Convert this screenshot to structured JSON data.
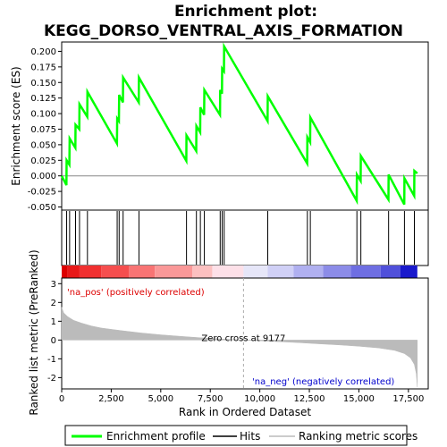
{
  "chart_data": {
    "type": "line",
    "title_line1": "Enrichment plot:",
    "title_line2": "KEGG_DORSO_VENTRAL_AXIS_FORMATION",
    "es_panel": {
      "ylabel": "Enrichment score (ES)",
      "ylim": [
        -0.055,
        0.215
      ],
      "yticks": [
        "0.200",
        "0.175",
        "0.150",
        "0.125",
        "0.100",
        "0.075",
        "0.050",
        "0.025",
        "0.000",
        "-0.025",
        "-0.050"
      ],
      "ytick_values": [
        0.2,
        0.175,
        0.15,
        0.125,
        0.1,
        0.075,
        0.05,
        0.025,
        0.0,
        -0.025,
        -0.05
      ],
      "series_color": "#00ff00",
      "hits": [
        250,
        400,
        700,
        900,
        1300,
        2800,
        2900,
        3100,
        3900,
        6300,
        6800,
        7000,
        7200,
        8000,
        8100,
        8200,
        10400,
        12400,
        12550,
        14900,
        15100,
        16500,
        17300,
        17800
      ],
      "points": [
        [
          0,
          0.0
        ],
        [
          240,
          -0.015
        ],
        [
          250,
          0.025
        ],
        [
          390,
          0.018
        ],
        [
          400,
          0.06
        ],
        [
          690,
          0.045
        ],
        [
          700,
          0.082
        ],
        [
          890,
          0.075
        ],
        [
          900,
          0.115
        ],
        [
          1290,
          0.095
        ],
        [
          1300,
          0.135
        ],
        [
          2790,
          0.052
        ],
        [
          2800,
          0.092
        ],
        [
          2890,
          0.088
        ],
        [
          2900,
          0.13
        ],
        [
          3090,
          0.118
        ],
        [
          3100,
          0.158
        ],
        [
          3890,
          0.118
        ],
        [
          3900,
          0.158
        ],
        [
          6290,
          0.024
        ],
        [
          6300,
          0.065
        ],
        [
          6790,
          0.04
        ],
        [
          6800,
          0.08
        ],
        [
          6990,
          0.07
        ],
        [
          7000,
          0.11
        ],
        [
          7190,
          0.098
        ],
        [
          7200,
          0.138
        ],
        [
          7990,
          0.098
        ],
        [
          8000,
          0.138
        ],
        [
          8090,
          0.132
        ],
        [
          8100,
          0.172
        ],
        [
          8190,
          0.168
        ],
        [
          8200,
          0.208
        ],
        [
          10390,
          0.088
        ],
        [
          10400,
          0.128
        ],
        [
          12390,
          0.02
        ],
        [
          12400,
          0.062
        ],
        [
          12540,
          0.054
        ],
        [
          12550,
          0.094
        ],
        [
          14890,
          -0.04
        ],
        [
          14900,
          0.002
        ],
        [
          15090,
          -0.008
        ],
        [
          15100,
          0.032
        ],
        [
          16490,
          -0.038
        ],
        [
          16500,
          0.002
        ],
        [
          17290,
          -0.046
        ],
        [
          17300,
          -0.004
        ],
        [
          17790,
          -0.032
        ],
        [
          17800,
          0.008
        ],
        [
          17950,
          0.004
        ]
      ]
    },
    "ranked_panel": {
      "ylabel": "Ranked list metric (PreRanked)",
      "ylim": [
        -2.6,
        3.3
      ],
      "yticks": [
        "3",
        "2",
        "1",
        "0",
        "-1",
        "-2"
      ],
      "ytick_values": [
        3,
        2,
        1,
        0,
        -1,
        -2
      ],
      "zero_cross_label": "Zero cross at 9177",
      "zero_cross": 9177,
      "pos_label": "'na_pos' (positively correlated)",
      "neg_label": "'na_neg' (negatively correlated)",
      "metric_points": [
        [
          0,
          1.75
        ],
        [
          100,
          1.45
        ],
        [
          300,
          1.25
        ],
        [
          600,
          1.05
        ],
        [
          1000,
          0.9
        ],
        [
          1500,
          0.75
        ],
        [
          2000,
          0.64
        ],
        [
          3000,
          0.5
        ],
        [
          4000,
          0.38
        ],
        [
          5000,
          0.28
        ],
        [
          6000,
          0.2
        ],
        [
          7000,
          0.12
        ],
        [
          8000,
          0.06
        ],
        [
          9177,
          0.0
        ],
        [
          10000,
          -0.04
        ],
        [
          11000,
          -0.09
        ],
        [
          12000,
          -0.14
        ],
        [
          13000,
          -0.2
        ],
        [
          14000,
          -0.26
        ],
        [
          15000,
          -0.33
        ],
        [
          16000,
          -0.42
        ],
        [
          16800,
          -0.55
        ],
        [
          17300,
          -0.72
        ],
        [
          17600,
          -0.95
        ],
        [
          17800,
          -1.3
        ],
        [
          17900,
          -1.8
        ],
        [
          17950,
          -2.5
        ]
      ]
    },
    "xaxis": {
      "xlabel": "Rank in Ordered Dataset",
      "xlim": [
        0,
        18500
      ],
      "xticks": [
        "0",
        "2,500",
        "5,000",
        "7,500",
        "10,000",
        "12,500",
        "15,000",
        "17,500"
      ],
      "xtick_values": [
        0,
        2500,
        5000,
        7500,
        10000,
        12500,
        15000,
        17500
      ],
      "n_genes": 17950
    },
    "colorbar": {
      "segments": [
        {
          "start": 0,
          "end": 300,
          "color": "#dd0000"
        },
        {
          "start": 300,
          "end": 900,
          "color": "#e81818"
        },
        {
          "start": 900,
          "end": 2000,
          "color": "#f03030"
        },
        {
          "start": 2000,
          "end": 3400,
          "color": "#f54e4e"
        },
        {
          "start": 3400,
          "end": 4700,
          "color": "#f87474"
        },
        {
          "start": 4700,
          "end": 6600,
          "color": "#fa9898"
        },
        {
          "start": 6600,
          "end": 7600,
          "color": "#fcc0c0"
        },
        {
          "start": 7600,
          "end": 9177,
          "color": "#fde0e8"
        },
        {
          "start": 9177,
          "end": 10400,
          "color": "#e6e6f8"
        },
        {
          "start": 10400,
          "end": 11700,
          "color": "#d0d0f6"
        },
        {
          "start": 11700,
          "end": 13200,
          "color": "#b0b0f0"
        },
        {
          "start": 13200,
          "end": 14600,
          "color": "#8c8ce8"
        },
        {
          "start": 14600,
          "end": 16100,
          "color": "#6e6ee2"
        },
        {
          "start": 16100,
          "end": 17100,
          "color": "#5050da"
        },
        {
          "start": 17100,
          "end": 17950,
          "color": "#1a1acc"
        }
      ]
    },
    "legend": {
      "items": [
        {
          "label": "Enrichment profile",
          "kind": "line",
          "color": "#00ff00"
        },
        {
          "label": "Hits",
          "kind": "line",
          "color": "#000000"
        },
        {
          "label": "Ranking metric scores",
          "kind": "line",
          "color": "#bbbbbb"
        }
      ]
    }
  }
}
